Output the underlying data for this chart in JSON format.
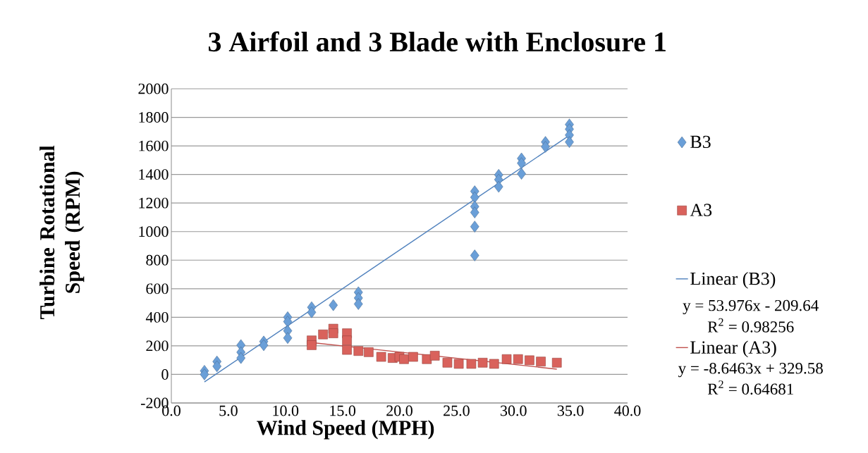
{
  "chart_data": {
    "type": "scatter",
    "title": "3 Airfoil and 3 Blade with Enclosure 1",
    "xlabel": "Wind Speed (MPH)",
    "ylabel": "Turbine Rotational Speed (RPM)",
    "xlim": [
      0,
      40
    ],
    "ylim": [
      -200,
      2000
    ],
    "xticks": [
      {
        "value": 0,
        "label": "0.0"
      },
      {
        "value": 5,
        "label": "5.0"
      },
      {
        "value": 10,
        "label": "10.0"
      },
      {
        "value": 15,
        "label": "15.0"
      },
      {
        "value": 20,
        "label": "20.0"
      },
      {
        "value": 25,
        "label": "25.0"
      },
      {
        "value": 30,
        "label": "30.0"
      },
      {
        "value": 35,
        "label": "35.0"
      },
      {
        "value": 40,
        "label": "40.0"
      }
    ],
    "yticks": [
      -200,
      0,
      200,
      400,
      600,
      800,
      1000,
      1200,
      1400,
      1600,
      1800,
      2000
    ],
    "grid": "y",
    "legend": "right",
    "series": [
      {
        "name": "B3",
        "type": "scatter",
        "marker": "diamond",
        "color": "#6a9fd8",
        "x": [
          2.9,
          2.9,
          4.0,
          4.0,
          6.1,
          6.1,
          6.1,
          8.1,
          8.1,
          10.2,
          10.2,
          10.2,
          10.2,
          12.3,
          12.3,
          14.2,
          16.4,
          16.4,
          16.4,
          26.6,
          26.6,
          26.6,
          26.6,
          26.6,
          26.6,
          28.7,
          28.7,
          28.7,
          30.7,
          30.7,
          30.7,
          32.8,
          32.8,
          34.9,
          34.9,
          34.9,
          34.9
        ],
        "values": [
          25,
          0,
          90,
          57,
          205,
          155,
          115,
          230,
          205,
          400,
          370,
          305,
          255,
          470,
          435,
          485,
          575,
          535,
          493,
          1282,
          1240,
          1175,
          1134,
          1035,
          833,
          1397,
          1364,
          1314,
          1512,
          1479,
          1405,
          1627,
          1594,
          1750,
          1717,
          1676,
          1627
        ]
      },
      {
        "name": "A3",
        "type": "scatter",
        "marker": "square",
        "color": "#d9625c",
        "x": [
          12.3,
          12.3,
          13.3,
          14.2,
          14.2,
          15.4,
          15.4,
          15.4,
          16.4,
          17.3,
          18.4,
          19.4,
          20.0,
          20.4,
          21.2,
          22.4,
          23.1,
          24.2,
          25.2,
          26.3,
          27.3,
          28.3,
          29.4,
          30.4,
          31.4,
          32.4,
          33.8
        ],
        "values": [
          238,
          205,
          280,
          320,
          288,
          288,
          238,
          172,
          164,
          156,
          123,
          115,
          123,
          107,
          123,
          107,
          131,
          82,
          74,
          74,
          82,
          74,
          107,
          107,
          99,
          90,
          82
        ]
      },
      {
        "name": "Linear (B3)",
        "type": "line",
        "marker": "none",
        "line_style": "solid",
        "color": "#4f81bd",
        "x": [
          2.9,
          34.9
        ],
        "values": [
          -53,
          1674
        ]
      },
      {
        "name": "Linear (A3)",
        "type": "line",
        "marker": "none",
        "line_style": "solid",
        "color": "#c0504d",
        "x": [
          12.3,
          33.8
        ],
        "values": [
          223,
          37
        ]
      }
    ],
    "annotations": [
      "y = 53.976x - 209.64",
      "R$^{2}$ = 0.98256",
      "y = -8.6463x + 329.58",
      "R$^{2}$ = 0.64681"
    ]
  }
}
